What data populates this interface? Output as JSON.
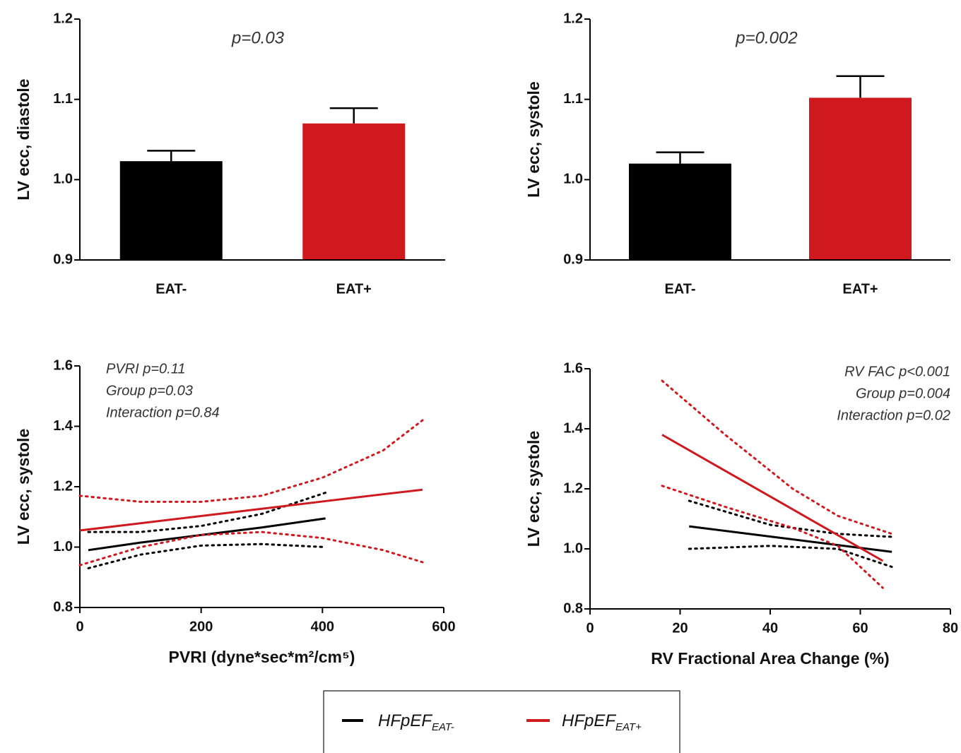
{
  "chart_data": [
    {
      "type": "bar",
      "ylabel": "LV ecc, diastole",
      "annotation": [
        "p=0.03"
      ],
      "categories": [
        "EAT-",
        "EAT+"
      ],
      "values": [
        1.023,
        1.07
      ],
      "errors": [
        0.013,
        0.019
      ],
      "colors": [
        "#000000",
        "#d0191f"
      ],
      "ylim": [
        0.9,
        1.2
      ],
      "yticks": [
        0.9,
        {
          "value": 1,
          "label": "1.0"
        },
        1.1,
        1.2
      ]
    },
    {
      "type": "bar",
      "ylabel": "LV ecc, systole",
      "annotation": [
        "p=0.002"
      ],
      "categories": [
        "EAT-",
        "EAT+"
      ],
      "values": [
        1.02,
        1.102
      ],
      "errors": [
        0.014,
        0.027
      ],
      "colors": [
        "#000000",
        "#d0191f"
      ],
      "ylim": [
        0.9,
        1.2
      ],
      "yticks": [
        0.9,
        {
          "value": 1,
          "label": "1.0"
        },
        1.1,
        1.2
      ]
    },
    {
      "type": "line",
      "ylabel": "LV ecc, systole",
      "xlabel": "PVRI  (dyne*sec*m²/cm⁵)",
      "annotation": [
        "PVRI p=0.11",
        "Group p=0.03",
        "Interaction p=0.84"
      ],
      "xlim": [
        0,
        600
      ],
      "xticks": [
        0,
        200,
        400,
        600
      ],
      "ylim": [
        0.8,
        1.6
      ],
      "yticks": [
        0.8,
        {
          "value": 1,
          "label": "1.0"
        },
        1.2,
        1.4,
        1.6
      ],
      "series": [
        {
          "name": "HFpEF",
          "name_sub": "EAT-",
          "color": "#000000",
          "style": "solid",
          "x": [
            14,
            100,
            200,
            300,
            405
          ],
          "values": [
            0.99,
            1.015,
            1.04,
            1.065,
            1.095
          ]
        },
        {
          "color": "#000000",
          "style": "dotted",
          "x": [
            14,
            100,
            200,
            300,
            405
          ],
          "values": [
            1.05,
            1.05,
            1.07,
            1.11,
            1.18
          ]
        },
        {
          "color": "#000000",
          "style": "dotted",
          "x": [
            14,
            100,
            200,
            300,
            405
          ],
          "values": [
            0.93,
            0.975,
            1.005,
            1.01,
            1.0
          ]
        },
        {
          "name": "HFpEF",
          "name_sub": "EAT+",
          "color": "#d0191f",
          "style": "solid",
          "x": [
            0,
            100,
            200,
            300,
            400,
            500,
            565
          ],
          "values": [
            1.055,
            1.079,
            1.103,
            1.127,
            1.151,
            1.175,
            1.19
          ]
        },
        {
          "color": "#d0191f",
          "style": "dotted",
          "x": [
            0,
            100,
            200,
            300,
            400,
            500,
            565
          ],
          "values": [
            1.17,
            1.15,
            1.15,
            1.17,
            1.23,
            1.32,
            1.42
          ]
        },
        {
          "color": "#d0191f",
          "style": "dotted",
          "x": [
            0,
            100,
            200,
            300,
            400,
            500,
            565
          ],
          "values": [
            0.94,
            1.0,
            1.04,
            1.05,
            1.03,
            0.99,
            0.95
          ]
        }
      ]
    },
    {
      "type": "line",
      "ylabel": "LV ecc, systole",
      "xlabel": "RV Fractional Area Change (%)",
      "annotation": [
        "RV FAC p<0.001",
        "Group p=0.004",
        "Interaction p=0.02"
      ],
      "xlim": [
        0,
        80
      ],
      "xticks": [
        0,
        20,
        40,
        60,
        80
      ],
      "ylim": [
        0.8,
        1.6
      ],
      "yticks": [
        0.8,
        {
          "value": 1,
          "label": "1.0"
        },
        1.2,
        1.4,
        1.6
      ],
      "series": [
        {
          "color": "#000000",
          "style": "solid",
          "x": [
            22,
            67
          ],
          "values": [
            1.075,
            0.99
          ]
        },
        {
          "color": "#000000",
          "style": "dotted",
          "x": [
            22,
            40,
            55,
            67
          ],
          "values": [
            1.16,
            1.08,
            1.05,
            1.04
          ]
        },
        {
          "color": "#000000",
          "style": "dotted",
          "x": [
            22,
            40,
            55,
            67
          ],
          "values": [
            1.0,
            1.01,
            1.0,
            0.94
          ]
        },
        {
          "color": "#d0191f",
          "style": "solid",
          "x": [
            16,
            65
          ],
          "values": [
            1.38,
            0.96
          ]
        },
        {
          "color": "#d0191f",
          "style": "dotted",
          "x": [
            16,
            30,
            45,
            55,
            67
          ],
          "values": [
            1.56,
            1.38,
            1.2,
            1.11,
            1.05
          ]
        },
        {
          "color": "#d0191f",
          "style": "dotted",
          "x": [
            16,
            30,
            45,
            55,
            65
          ],
          "values": [
            1.21,
            1.14,
            1.07,
            1.01,
            0.87
          ]
        }
      ]
    }
  ]
}
